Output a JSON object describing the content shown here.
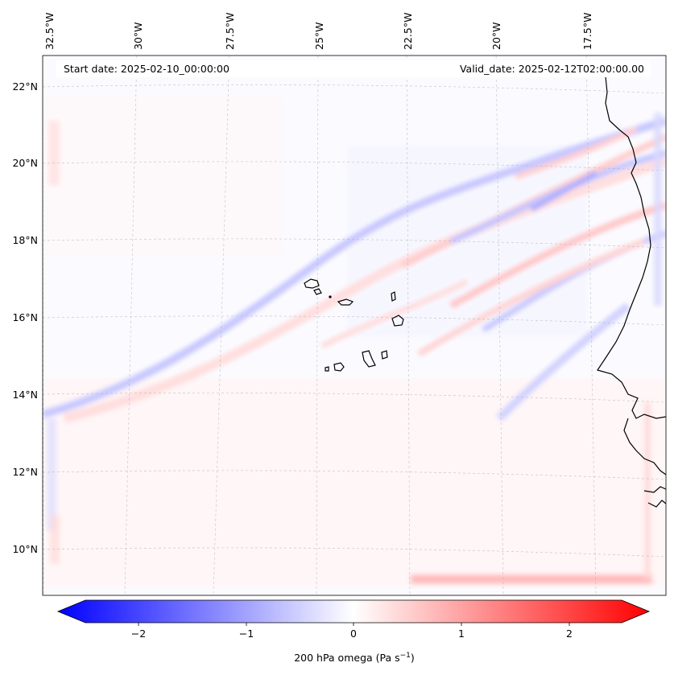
{
  "map": {
    "start_date": "Start date: 2025-02-10_00:00:00",
    "valid_date": "Valid_date: 2025-02-12T02:00:00.00",
    "lon_labels": [
      "32.5°W",
      "30°W",
      "27.5°W",
      "25°W",
      "22.5°W",
      "20°W",
      "17.5°W"
    ],
    "lat_labels": [
      "22°N",
      "20°N",
      "18°N",
      "16°N",
      "14°N",
      "12°N",
      "10°N"
    ]
  },
  "colorbar": {
    "label_prefix": "200 hPa omega (Pa s",
    "label_exp": "−1",
    "label_suffix": ")",
    "ticks": [
      "−2",
      "−1",
      "0",
      "1",
      "2"
    ],
    "min_color": "#0000ff",
    "mid_color": "#ffffff",
    "max_color": "#ff0000"
  }
}
